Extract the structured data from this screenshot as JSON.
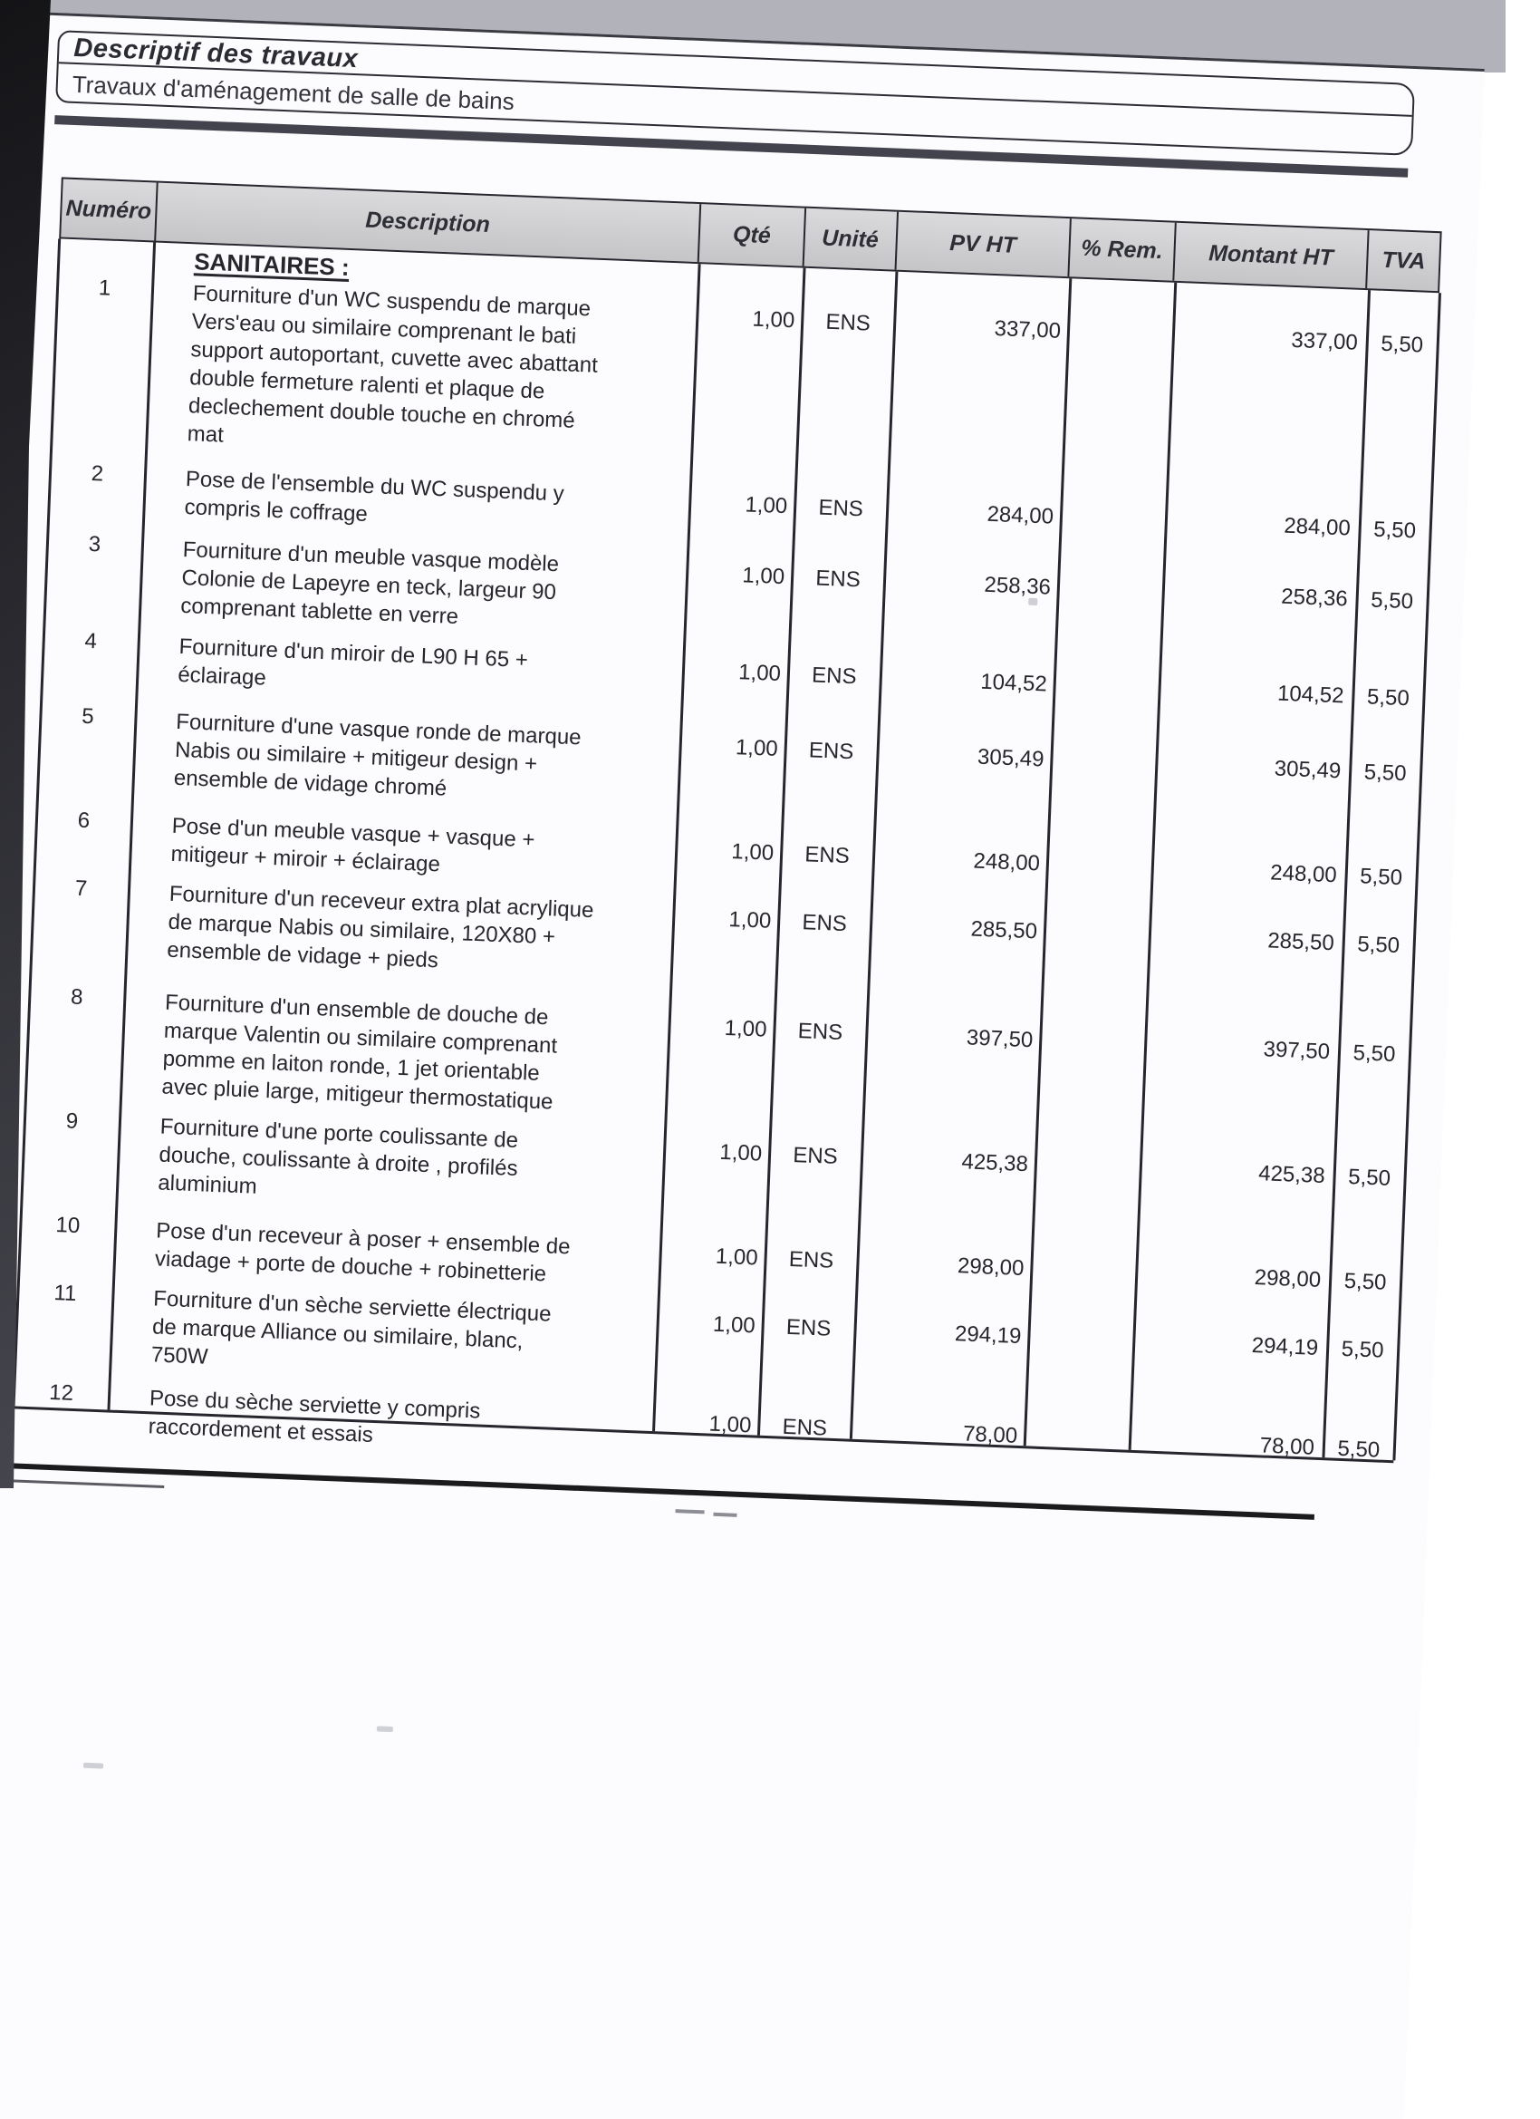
{
  "document": {
    "title": "Descriptif des travaux",
    "subtitle": "Travaux d'aménagement de salle de bains"
  },
  "table": {
    "columns": [
      "Numéro",
      "Description",
      "Qté",
      "Unité",
      "PV HT",
      "% Rem.",
      "Montant HT",
      "TVA"
    ],
    "section_heading": "SANITAIRES :",
    "rows": [
      {
        "numero": "1",
        "description_lines": [
          "Fourniture d'un WC suspendu de marque",
          "Vers'eau ou similaire comprenant le bati",
          "support autoportant, cuvette avec abattant",
          "double fermeture ralenti et plaque de",
          "declechement double touche en chromé",
          "mat"
        ],
        "qte": "1,00",
        "unite": "ENS",
        "pv_ht": "337,00",
        "rem": "",
        "montant_ht": "337,00",
        "tva": "5,50"
      },
      {
        "numero": "2",
        "description_lines": [
          "Pose de l'ensemble du WC suspendu y",
          "compris le coffrage"
        ],
        "qte": "1,00",
        "unite": "ENS",
        "pv_ht": "284,00",
        "rem": "",
        "montant_ht": "284,00",
        "tva": "5,50"
      },
      {
        "numero": "3",
        "description_lines": [
          "Fourniture d'un meuble vasque modèle",
          "Colonie de Lapeyre en teck, largeur 90",
          "comprenant tablette en verre"
        ],
        "qte": "1,00",
        "unite": "ENS",
        "pv_ht": "258,36",
        "rem": "",
        "montant_ht": "258,36",
        "tva": "5,50"
      },
      {
        "numero": "4",
        "description_lines": [
          "Fourniture d'un miroir de L90 H 65 +",
          "éclairage"
        ],
        "qte": "1,00",
        "unite": "ENS",
        "pv_ht": "104,52",
        "rem": "",
        "montant_ht": "104,52",
        "tva": "5,50"
      },
      {
        "numero": "5",
        "description_lines": [
          "Fourniture d'une vasque ronde  de marque",
          "Nabis ou similaire + mitigeur design +",
          "ensemble de vidage chromé"
        ],
        "qte": "1,00",
        "unite": "ENS",
        "pv_ht": "305,49",
        "rem": "",
        "montant_ht": "305,49",
        "tva": "5,50"
      },
      {
        "numero": "6",
        "description_lines": [
          "Pose d'un meuble vasque + vasque +",
          "mitigeur + miroir + éclairage"
        ],
        "qte": "1,00",
        "unite": "ENS",
        "pv_ht": "248,00",
        "rem": "",
        "montant_ht": "248,00",
        "tva": "5,50"
      },
      {
        "numero": "7",
        "description_lines": [
          "Fourniture d'un receveur extra plat acrylique",
          "de marque Nabis ou similaire, 120X80 +",
          "ensemble de vidage  + pieds"
        ],
        "qte": "1,00",
        "unite": "ENS",
        "pv_ht": "285,50",
        "rem": "",
        "montant_ht": "285,50",
        "tva": "5,50"
      },
      {
        "numero": "8",
        "description_lines": [
          "Fourniture d'un  ensemble de douche de",
          "marque Valentin ou similaire comprenant",
          "pomme en laiton ronde, 1 jet orientable",
          "avec pluie large, mitigeur thermostatique"
        ],
        "qte": "1,00",
        "unite": "ENS",
        "pv_ht": "397,50",
        "rem": "",
        "montant_ht": "397,50",
        "tva": "5,50"
      },
      {
        "numero": "9",
        "description_lines": [
          "Fourniture d'une porte coulissante de",
          "douche, coulissante à droite , profilés",
          "aluminium"
        ],
        "qte": "1,00",
        "unite": "ENS",
        "pv_ht": "425,38",
        "rem": "",
        "montant_ht": "425,38",
        "tva": "5,50"
      },
      {
        "numero": "10",
        "description_lines": [
          "Pose d'un receveur à poser + ensemble de",
          "viadage + porte de douche + robinetterie"
        ],
        "qte": "1,00",
        "unite": "ENS",
        "pv_ht": "298,00",
        "rem": "",
        "montant_ht": "298,00",
        "tva": "5,50"
      },
      {
        "numero": "11",
        "description_lines": [
          "Fourniture d'un sèche serviette électrique",
          "de marque Alliance ou similaire, blanc,",
          "750W"
        ],
        "qte": "1,00",
        "unite": "ENS",
        "pv_ht": "294,19",
        "rem": "",
        "montant_ht": "294,19",
        "tva": "5,50"
      },
      {
        "numero": "12",
        "description_lines": [
          "Pose du sèche serviette y compris",
          "raccordement et essais"
        ],
        "qte": "1,00",
        "unite": "ENS",
        "pv_ht": "78,00",
        "rem": "",
        "montant_ht": "78,00",
        "tva": "5,50"
      }
    ]
  }
}
